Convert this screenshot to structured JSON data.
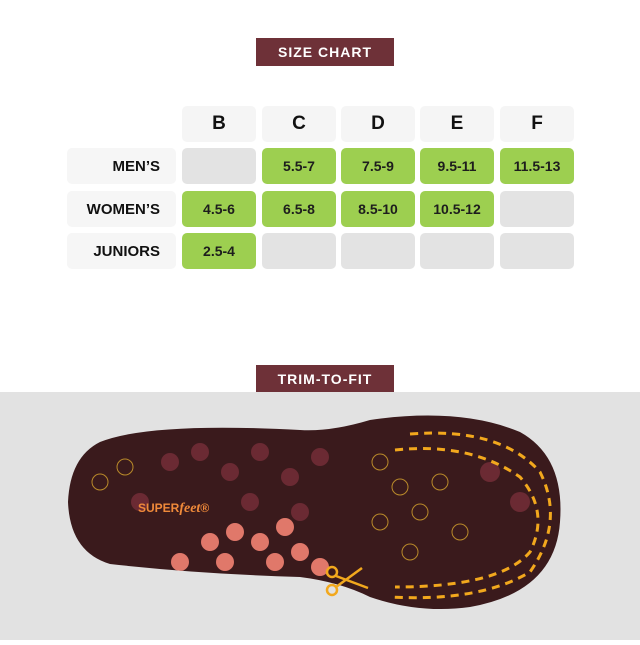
{
  "size_chart": {
    "title": "SIZE CHART",
    "columns": [
      "B",
      "C",
      "D",
      "E",
      "F"
    ],
    "rows": [
      {
        "label": "MEN’S",
        "values": [
          "",
          "5.5-7",
          "7.5-9",
          "9.5-11",
          "11.5-13"
        ]
      },
      {
        "label": "WOMEN’S",
        "values": [
          "4.5-6",
          "6.5-8",
          "8.5-10",
          "10.5-12",
          ""
        ]
      },
      {
        "label": "JUNIORS",
        "values": [
          "2.5-4",
          "",
          "",
          "",
          ""
        ]
      }
    ]
  },
  "trim": {
    "title": "TRIM-TO-FIT",
    "brand_logo": "SUPERfeet®",
    "icon": "scissors-icon"
  },
  "colors": {
    "banner": "#6e3138",
    "available": "#9dcf50",
    "unavailable": "#e3e3e3",
    "trim_line": "#f2a81d"
  }
}
